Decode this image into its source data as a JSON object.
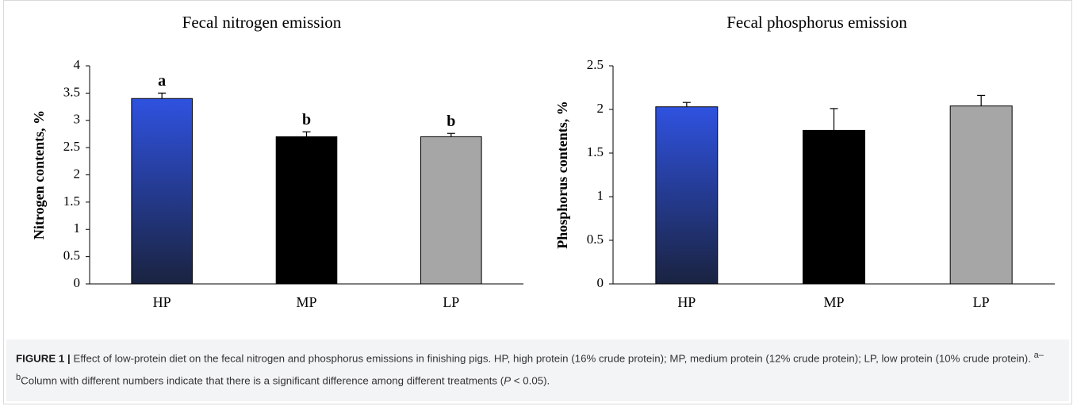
{
  "chart_data": [
    {
      "type": "bar",
      "title": "Fecal nitrogen emission",
      "y_label": "Nitrogen contents, %",
      "categories": [
        "HP",
        "MP",
        "LP"
      ],
      "values": [
        3.4,
        2.7,
        2.7
      ],
      "errors": [
        0.1,
        0.09,
        0.06
      ],
      "annotations": [
        "a",
        "b",
        "b"
      ],
      "colors": [
        "#2f52e0",
        "#000000",
        "#a6a6a6"
      ],
      "ylim": [
        0,
        4
      ],
      "yticks": [
        0,
        0.5,
        1,
        1.5,
        2,
        2.5,
        3,
        3.5,
        4
      ],
      "grid": false
    },
    {
      "type": "bar",
      "title": "Fecal phosphorus emission",
      "y_label": "Phosphorus contents, %",
      "categories": [
        "HP",
        "MP",
        "LP"
      ],
      "values": [
        2.03,
        1.76,
        2.04
      ],
      "errors": [
        0.05,
        0.25,
        0.12
      ],
      "colors": [
        "#2f52e0",
        "#000000",
        "#a6a6a6"
      ],
      "ylim": [
        0,
        2.5
      ],
      "yticks": [
        0,
        0.5,
        1,
        1.5,
        2,
        2.5
      ],
      "grid": false
    }
  ],
  "caption": {
    "label": "FIGURE 1 |",
    "text": " Effect of low-protein diet on the fecal nitrogen and phosphorus emissions in finishing pigs. HP, high protein (16% crude protein); MP, medium protein (12% crude protein); LP, low protein (10% crude protein). ",
    "superscript": "a–b",
    "text2": "Column with different numbers indicate that there is a significant difference among different treatments (",
    "italic": "P",
    "text3": " < 0.05)."
  }
}
